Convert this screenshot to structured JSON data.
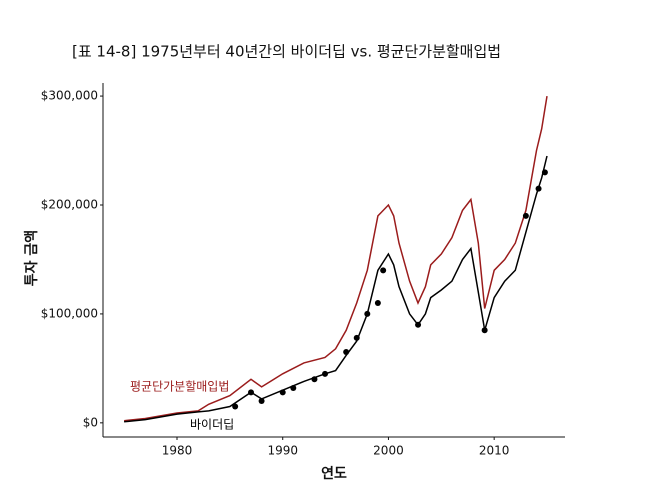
{
  "chart_data": {
    "type": "line",
    "title": "[표 14-8] 1975년부터 40년간의 바이더딥 vs. 평균단가분할매입법",
    "x_label": "연도",
    "y_label": "투자 금액",
    "x": [
      1975,
      1977,
      1980,
      1982,
      1983,
      1985,
      1987,
      1988,
      1990,
      1992,
      1994,
      1995,
      1996,
      1997,
      1998,
      1999,
      2000,
      2000.5,
      2001,
      2002,
      2002.8,
      2003.5,
      2004,
      2005,
      2006,
      2007,
      2007.8,
      2008.5,
      2009.1,
      2010,
      2011,
      2012,
      2013,
      2014,
      2014.5,
      2015
    ],
    "series": [
      {
        "name": "평균단가분할매입법",
        "color": "#9b1c1c",
        "values": [
          2000,
          4000,
          9000,
          11000,
          17000,
          25000,
          40000,
          33000,
          45000,
          55000,
          60000,
          68000,
          85000,
          110000,
          140000,
          190000,
          200000,
          190000,
          165000,
          130000,
          110000,
          125000,
          145000,
          155000,
          170000,
          195000,
          205000,
          165000,
          105000,
          140000,
          150000,
          165000,
          195000,
          250000,
          270000,
          300000
        ]
      },
      {
        "name": "바이더딥",
        "color": "#000000",
        "values": [
          1000,
          3000,
          8000,
          10000,
          11000,
          15000,
          28000,
          22000,
          30000,
          38000,
          45000,
          48000,
          62000,
          75000,
          100000,
          140000,
          155000,
          145000,
          125000,
          100000,
          90000,
          100000,
          115000,
          122000,
          130000,
          150000,
          160000,
          120000,
          85000,
          115000,
          130000,
          140000,
          175000,
          210000,
          225000,
          245000
        ],
        "markers": {
          "x": [
            1985.5,
            1987,
            1988,
            1990,
            1991,
            1993,
            1994,
            1996,
            1997,
            1998,
            1999,
            1999.5,
            2002.8,
            2009.1,
            2013,
            2014.2,
            2014.8
          ],
          "values": [
            15000,
            28000,
            20000,
            28000,
            32000,
            40000,
            45000,
            65000,
            78000,
            100000,
            110000,
            140000,
            90000,
            85000,
            190000,
            215000,
            230000
          ]
        }
      }
    ],
    "xlim": [
      1973,
      2016.7
    ],
    "ylim": [
      -13000,
      312000
    ],
    "xticks": [
      1980,
      1990,
      2000,
      2010
    ],
    "yticks": [
      {
        "value": 0,
        "label": "$0"
      },
      {
        "value": 100000,
        "label": "$100,000"
      },
      {
        "value": 200000,
        "label": "$200,000"
      },
      {
        "value": 300000,
        "label": "$300,000"
      }
    ]
  }
}
